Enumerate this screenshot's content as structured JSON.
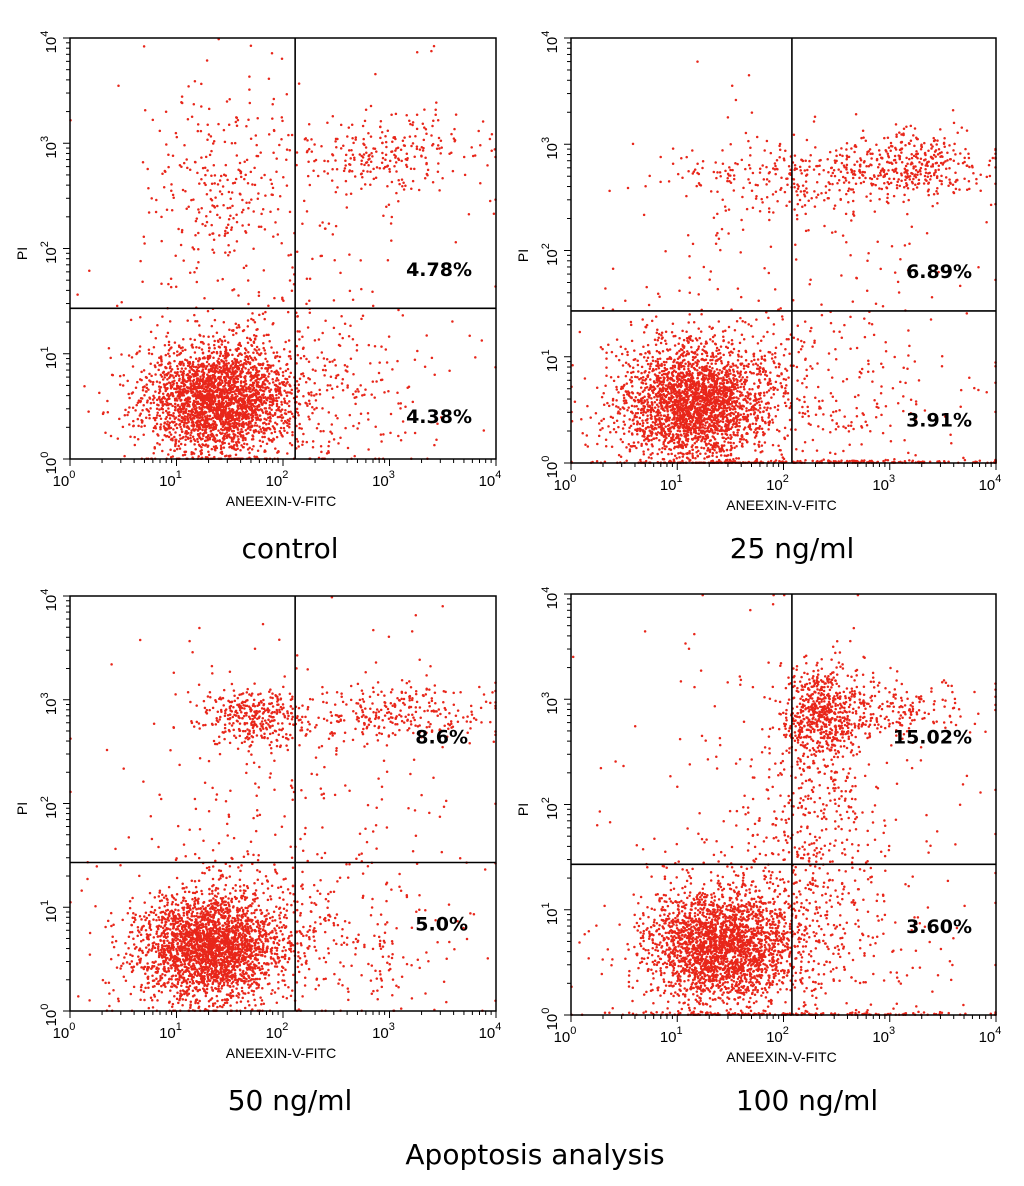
{
  "figure_title": "Apoptosis analysis",
  "colors": {
    "dots": "#e8261a",
    "axes": "#000000"
  },
  "chart_data": [
    {
      "type": "scatter",
      "caption": "control",
      "xlabel": "ANEEXIN-V-FITC",
      "ylabel": "PI",
      "xscale": "log",
      "yscale": "log",
      "xlim": [
        1,
        10000
      ],
      "ylim": [
        1,
        10000
      ],
      "x_ticks": [
        {
          "base": "10",
          "exp": "0"
        },
        {
          "base": "10",
          "exp": "1"
        },
        {
          "base": "10",
          "exp": "2"
        },
        {
          "base": "10",
          "exp": "3"
        },
        {
          "base": "10",
          "exp": "4"
        }
      ],
      "y_ticks": [
        {
          "base": "10",
          "exp": "0"
        },
        {
          "base": "10",
          "exp": "1"
        },
        {
          "base": "10",
          "exp": "2"
        },
        {
          "base": "10",
          "exp": "3"
        },
        {
          "base": "10",
          "exp": "4"
        }
      ],
      "gate": {
        "x": 130,
        "y": 27
      },
      "quadrant_labels": {
        "upper_right": "4.78%",
        "lower_right": "4.38%"
      },
      "populations": [
        {
          "name": "live",
          "cx": 25,
          "cy": 3.6,
          "sx": 0.34,
          "sy": 0.26,
          "n": 2400
        },
        {
          "name": "live-diffuse",
          "cx": 40,
          "cy": 5,
          "sx": 0.55,
          "sy": 0.4,
          "n": 450
        },
        {
          "name": "late-apoptotic",
          "cx": 900,
          "cy": 800,
          "sx": 0.45,
          "sy": 0.18,
          "n": 250
        },
        {
          "name": "necrotic",
          "cx": 25,
          "cy": 400,
          "sx": 0.35,
          "sy": 0.45,
          "n": 250
        },
        {
          "name": "early-apoptotic",
          "cx": 700,
          "cy": 3.5,
          "sx": 0.5,
          "sy": 0.35,
          "n": 110
        },
        {
          "name": "scatter",
          "cx": 150,
          "cy": 60,
          "sx": 0.9,
          "sy": 0.9,
          "n": 160
        }
      ]
    },
    {
      "type": "scatter",
      "caption": "25 ng/ml",
      "xlabel": "ANEEXIN-V-FITC",
      "ylabel": "PI",
      "xscale": "log",
      "yscale": "log",
      "xlim": [
        1,
        10000
      ],
      "ylim": [
        1,
        10000
      ],
      "x_ticks": [
        {
          "base": "10",
          "exp": "0"
        },
        {
          "base": "10",
          "exp": "1"
        },
        {
          "base": "10",
          "exp": "2"
        },
        {
          "base": "10",
          "exp": "3"
        },
        {
          "base": "10",
          "exp": "4"
        }
      ],
      "y_ticks": [
        {
          "base": "10",
          "exp": "0"
        },
        {
          "base": "10",
          "exp": "1"
        },
        {
          "base": "10",
          "exp": "2"
        },
        {
          "base": "10",
          "exp": "3"
        },
        {
          "base": "10",
          "exp": "4"
        }
      ],
      "gate": {
        "x": 120,
        "y": 27
      },
      "quadrant_labels": {
        "upper_right": "6.89%",
        "lower_right": "3.91%"
      },
      "populations": [
        {
          "name": "live",
          "cx": 14,
          "cy": 3.6,
          "sx": 0.33,
          "sy": 0.26,
          "n": 2300
        },
        {
          "name": "live-diffuse",
          "cx": 25,
          "cy": 5,
          "sx": 0.55,
          "sy": 0.4,
          "n": 500
        },
        {
          "name": "late-apoptotic",
          "cx": 1600,
          "cy": 650,
          "sx": 0.35,
          "sy": 0.18,
          "n": 320
        },
        {
          "name": "band",
          "cx": 150,
          "cy": 500,
          "sx": 0.7,
          "sy": 0.15,
          "n": 300
        },
        {
          "name": "early-apoptotic",
          "cx": 500,
          "cy": 3.5,
          "sx": 0.5,
          "sy": 0.35,
          "n": 110
        },
        {
          "name": "scatter",
          "cx": 150,
          "cy": 60,
          "sx": 0.9,
          "sy": 0.9,
          "n": 200
        },
        {
          "name": "axis-floor",
          "cx": 200,
          "cy": 1.02,
          "sx": 1.0,
          "sy": 0.01,
          "n": 200
        }
      ]
    },
    {
      "type": "scatter",
      "caption": "50 ng/ml",
      "xlabel": "ANEEXIN-V-FITC",
      "ylabel": "PI",
      "xscale": "log",
      "yscale": "log",
      "xlim": [
        1,
        10000
      ],
      "ylim": [
        1,
        10000
      ],
      "x_ticks": [
        {
          "base": "10",
          "exp": "0"
        },
        {
          "base": "10",
          "exp": "1"
        },
        {
          "base": "10",
          "exp": "2"
        },
        {
          "base": "10",
          "exp": "3"
        },
        {
          "base": "10",
          "exp": "4"
        }
      ],
      "y_ticks": [
        {
          "base": "10",
          "exp": "0"
        },
        {
          "base": "10",
          "exp": "1"
        },
        {
          "base": "10",
          "exp": "2"
        },
        {
          "base": "10",
          "exp": "3"
        },
        {
          "base": "10",
          "exp": "4"
        }
      ],
      "gate": {
        "x": 130,
        "y": 27
      },
      "quadrant_labels": {
        "upper_right": "8.6%",
        "lower_right": "5.0%"
      },
      "populations": [
        {
          "name": "live",
          "cx": 20,
          "cy": 4,
          "sx": 0.33,
          "sy": 0.26,
          "n": 2300
        },
        {
          "name": "live-diffuse",
          "cx": 35,
          "cy": 5.5,
          "sx": 0.55,
          "sy": 0.4,
          "n": 500
        },
        {
          "name": "late-apoptotic",
          "cx": 1100,
          "cy": 750,
          "sx": 0.45,
          "sy": 0.15,
          "n": 280
        },
        {
          "name": "necrotic",
          "cx": 50,
          "cy": 700,
          "sx": 0.25,
          "sy": 0.15,
          "n": 350
        },
        {
          "name": "early-apoptotic",
          "cx": 500,
          "cy": 4,
          "sx": 0.5,
          "sy": 0.35,
          "n": 150
        },
        {
          "name": "scatter",
          "cx": 150,
          "cy": 80,
          "sx": 0.9,
          "sy": 0.9,
          "n": 220
        }
      ]
    },
    {
      "type": "scatter",
      "caption": "100 ng/ml",
      "xlabel": "ANEEXIN-V-FITC",
      "ylabel": "PI",
      "xscale": "log",
      "yscale": "log",
      "xlim": [
        1,
        10000
      ],
      "ylim": [
        1,
        10000
      ],
      "x_ticks": [
        {
          "base": "10",
          "exp": "0"
        },
        {
          "base": "10",
          "exp": "1"
        },
        {
          "base": "10",
          "exp": "2"
        },
        {
          "base": "10",
          "exp": "3"
        },
        {
          "base": "10",
          "exp": "4"
        }
      ],
      "y_ticks": [
        {
          "base": "10",
          "exp": "0"
        },
        {
          "base": "10",
          "exp": "1"
        },
        {
          "base": "10",
          "exp": "2"
        },
        {
          "base": "10",
          "exp": "3"
        },
        {
          "base": "10",
          "exp": "4"
        }
      ],
      "gate": {
        "x": 120,
        "y": 27
      },
      "quadrant_labels": {
        "upper_right": "15.02%",
        "lower_right": "3.60%"
      },
      "populations": [
        {
          "name": "live",
          "cx": 25,
          "cy": 4.5,
          "sx": 0.33,
          "sy": 0.26,
          "n": 2200
        },
        {
          "name": "live-diffuse",
          "cx": 40,
          "cy": 6,
          "sx": 0.55,
          "sy": 0.4,
          "n": 450
        },
        {
          "name": "late-apoptotic",
          "cx": 220,
          "cy": 700,
          "sx": 0.18,
          "sy": 0.25,
          "n": 550
        },
        {
          "name": "late-spread",
          "cx": 800,
          "cy": 800,
          "sx": 0.45,
          "sy": 0.15,
          "n": 250
        },
        {
          "name": "streak",
          "cx": 180,
          "cy": 60,
          "sx": 0.35,
          "sy": 0.6,
          "n": 350
        },
        {
          "name": "early-apoptotic",
          "cx": 500,
          "cy": 4,
          "sx": 0.5,
          "sy": 0.35,
          "n": 100
        },
        {
          "name": "scatter",
          "cx": 150,
          "cy": 80,
          "sx": 0.9,
          "sy": 0.9,
          "n": 200
        },
        {
          "name": "axis-floor",
          "cx": 150,
          "cy": 1.02,
          "sx": 1.0,
          "sy": 0.01,
          "n": 150
        }
      ]
    }
  ]
}
